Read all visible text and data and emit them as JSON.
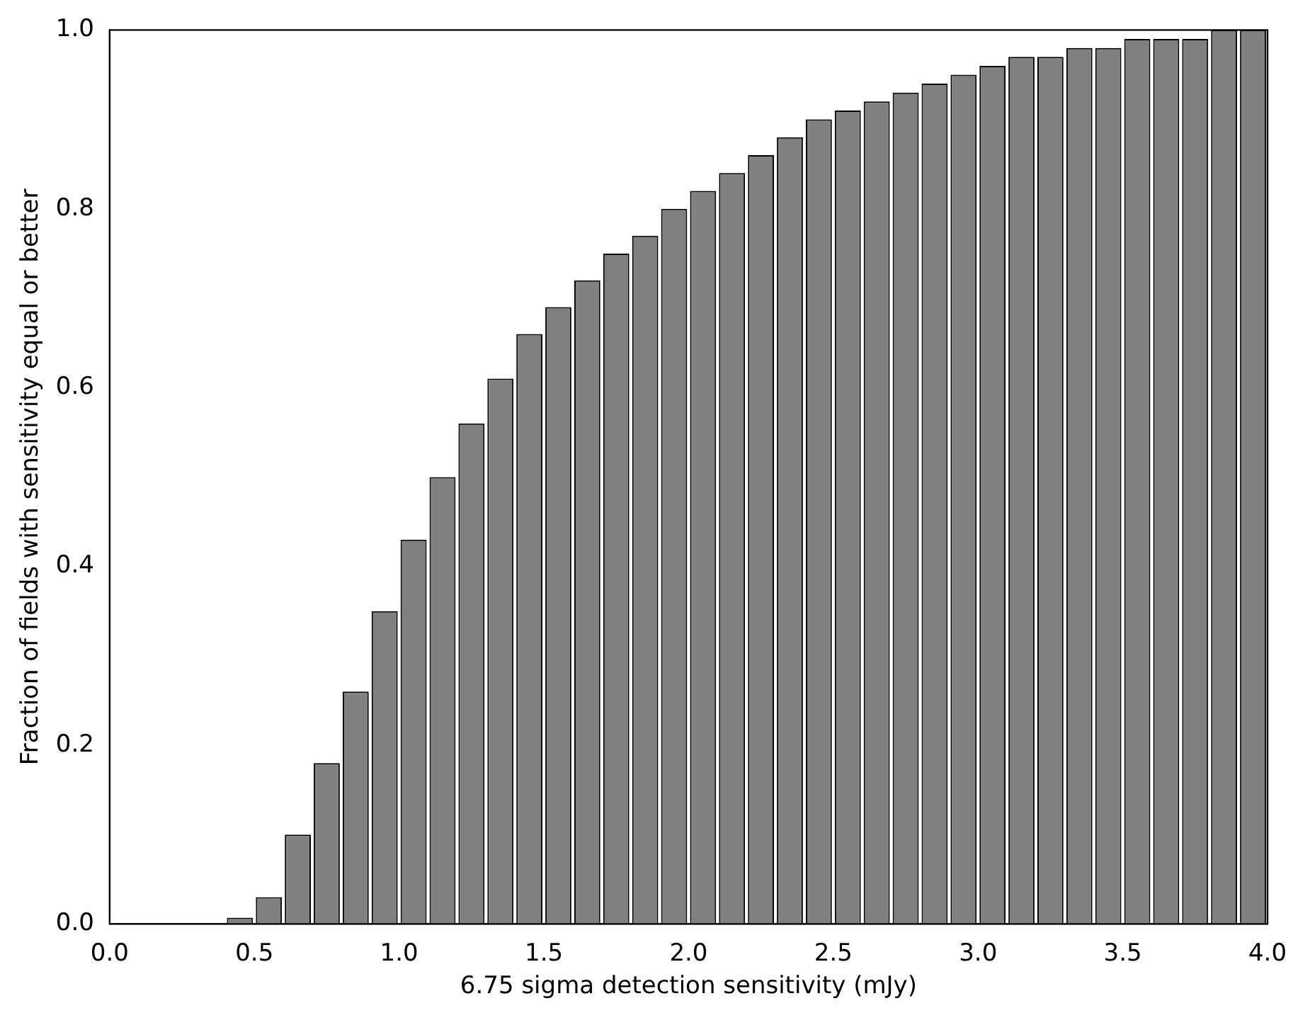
{
  "chart_data": {
    "type": "histogram",
    "xlabel": "6.75 sigma detection sensitivity (mJy)",
    "ylabel": "Fraction of fields with sensitivity equal or better",
    "bins": [
      0.0,
      0.1,
      0.2,
      0.3,
      0.4,
      0.5,
      0.6,
      0.7,
      0.8,
      0.9,
      1.0,
      1.1,
      1.2,
      1.3,
      1.4,
      1.5,
      1.6,
      1.7,
      1.8,
      1.9,
      2.0,
      2.1,
      2.2,
      2.3,
      2.4,
      2.5,
      2.6,
      2.7,
      2.8,
      2.9,
      3.0,
      3.1,
      3.2,
      3.3,
      3.4,
      3.5,
      3.6,
      3.7,
      3.8,
      3.9,
      4.0
    ],
    "values": [
      0,
      0,
      0,
      0,
      0.007,
      0.03,
      0.1,
      0.18,
      0.26,
      0.35,
      0.43,
      0.5,
      0.56,
      0.61,
      0.66,
      0.69,
      0.72,
      0.75,
      0.77,
      0.8,
      0.82,
      0.84,
      0.86,
      0.88,
      0.9,
      0.91,
      0.92,
      0.93,
      0.94,
      0.95,
      0.96,
      0.97,
      0.97,
      0.98,
      0.98,
      0.99,
      0.99,
      0.99,
      1.0,
      1.0
    ],
    "color": "#808080",
    "xlim": [
      0,
      4
    ],
    "xticks": [
      {
        "value": 0,
        "label": "0.0"
      },
      {
        "value": 0.5,
        "label": "0.5"
      },
      {
        "value": 1,
        "label": "1.0"
      },
      {
        "value": 1.5,
        "label": "1.5"
      },
      {
        "value": 2,
        "label": "2.0"
      },
      {
        "value": 2.5,
        "label": "2.5"
      },
      {
        "value": 3,
        "label": "3.0"
      },
      {
        "value": 3.5,
        "label": "3.5"
      },
      {
        "value": 4,
        "label": "4.0"
      }
    ],
    "ylim": [
      0,
      1
    ],
    "yticks": [
      {
        "value": 0,
        "label": "0.0"
      },
      {
        "value": 0.2,
        "label": "0.2"
      },
      {
        "value": 0.4,
        "label": "0.4"
      },
      {
        "value": 0.6,
        "label": "0.6"
      },
      {
        "value": 0.8,
        "label": "0.8"
      },
      {
        "value": 1,
        "label": "1.0"
      }
    ],
    "grid": false,
    "legend": false
  }
}
